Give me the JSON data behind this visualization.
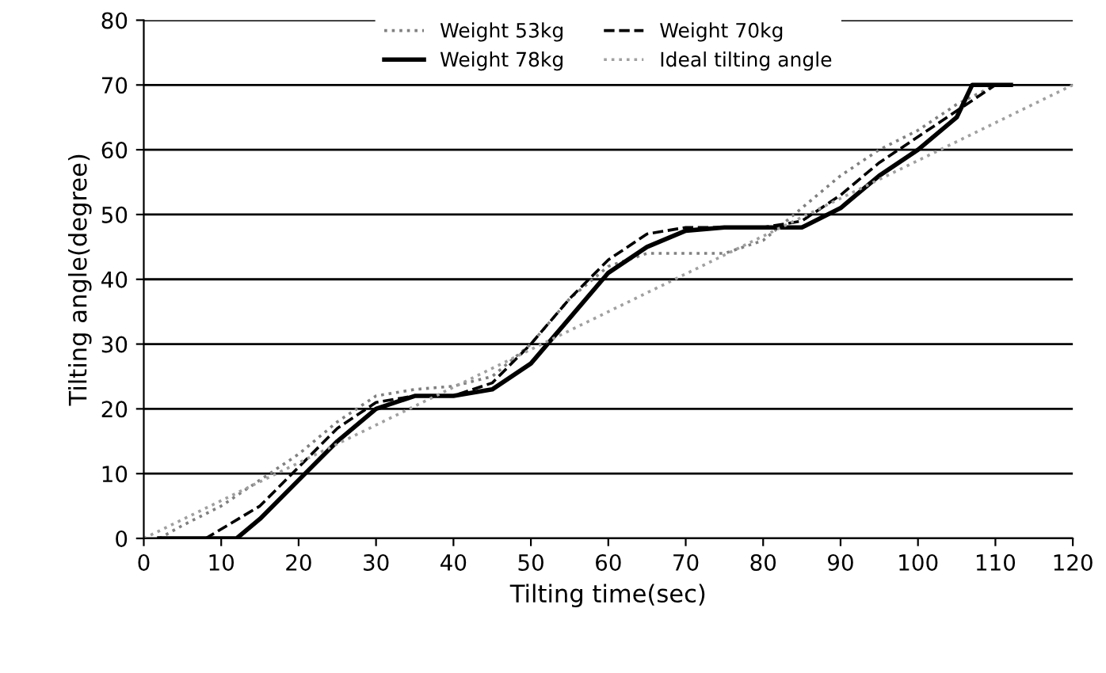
{
  "chart_data": {
    "type": "line",
    "xlabel": "Tilting time(sec)",
    "ylabel": "Tilting angle(degree)",
    "xlim": [
      0,
      120
    ],
    "xticks": [
      0,
      10,
      20,
      30,
      40,
      50,
      60,
      70,
      80,
      90,
      100,
      110,
      120
    ],
    "ylim": [
      0,
      80
    ],
    "yticks": [
      0,
      10,
      20,
      30,
      40,
      50,
      60,
      70,
      80
    ],
    "grid": "y",
    "legend": "top",
    "marker": "none",
    "series": [
      {
        "name": "Weight 53kg",
        "color": "#808080",
        "line_style": "dotted",
        "x": [
          2,
          5,
          10,
          15,
          20,
          25,
          30,
          35,
          40,
          45,
          50,
          55,
          60,
          65,
          70,
          75,
          80,
          85,
          90,
          95,
          100,
          105,
          110
        ],
        "values": [
          0,
          2,
          5,
          9,
          13,
          18,
          22,
          23,
          23.5,
          25,
          30,
          37,
          42,
          44,
          44,
          44,
          46,
          51,
          56,
          60,
          63,
          67,
          70
        ]
      },
      {
        "name": "Weight 70kg",
        "color": "#000000",
        "line_style": "dashed",
        "x": [
          2,
          8,
          15,
          20,
          25,
          30,
          35,
          40,
          45,
          50,
          55,
          60,
          65,
          70,
          75,
          80,
          85,
          90,
          95,
          100,
          105,
          110
        ],
        "values": [
          0,
          0,
          5,
          11,
          17,
          21,
          22,
          22,
          24,
          30,
          37,
          43,
          47,
          48,
          48,
          48,
          49,
          53,
          58,
          62,
          66,
          70
        ]
      },
      {
        "name": "Weight 78kg",
        "color": "#000000",
        "line_style": "solid",
        "x": [
          2,
          12,
          15,
          20,
          25,
          30,
          35,
          40,
          45,
          50,
          55,
          60,
          65,
          70,
          75,
          80,
          85,
          90,
          95,
          100,
          105,
          107,
          112
        ],
        "values": [
          0,
          0,
          3,
          9,
          15,
          20,
          22,
          22,
          23,
          27,
          34,
          41,
          45,
          47.5,
          48,
          48,
          48,
          51,
          56,
          60,
          65,
          70,
          70
        ]
      },
      {
        "name": "Ideal tilting angle",
        "color": "#a0a0a0",
        "line_style": "dotted",
        "x": [
          0,
          120
        ],
        "values": [
          0,
          70
        ]
      }
    ]
  }
}
